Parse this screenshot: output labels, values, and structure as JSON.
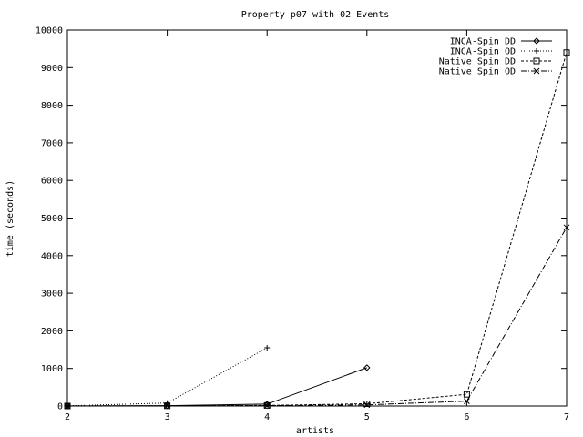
{
  "chart_data": {
    "type": "line",
    "title": "Property p07 with 02 Events",
    "xlabel": "artists",
    "ylabel": "time (seconds)",
    "xlim": [
      2,
      7
    ],
    "ylim": [
      0,
      10000
    ],
    "x_ticks": [
      2,
      3,
      4,
      5,
      6,
      7
    ],
    "y_ticks": [
      0,
      1000,
      2000,
      3000,
      4000,
      5000,
      6000,
      7000,
      8000,
      9000,
      10000
    ],
    "grid": false,
    "legend_position": "top-right",
    "series": [
      {
        "name": "INCA-Spin DD",
        "marker": "diamond",
        "dash": "solid",
        "x": [
          2,
          3,
          4,
          5
        ],
        "y": [
          2,
          10,
          50,
          1020
        ]
      },
      {
        "name": "INCA-Spin OD",
        "marker": "plus",
        "dash": "dotted",
        "x": [
          2,
          3,
          4
        ],
        "y": [
          5,
          80,
          1550
        ]
      },
      {
        "name": "Native Spin DD",
        "marker": "square",
        "dash": "dashed",
        "x": [
          2,
          3,
          4,
          5,
          6,
          7
        ],
        "y": [
          0,
          5,
          15,
          60,
          310,
          9400
        ]
      },
      {
        "name": "Native Spin OD",
        "marker": "x",
        "dash": "dash-dot",
        "x": [
          2,
          3,
          4,
          5,
          6,
          7
        ],
        "y": [
          0,
          3,
          10,
          30,
          130,
          4750
        ]
      }
    ]
  }
}
